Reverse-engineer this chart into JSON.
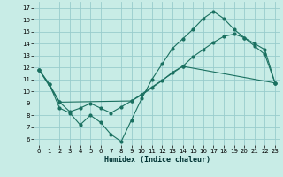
{
  "xlabel": "Humidex (Indice chaleur)",
  "bg_color": "#c8ece6",
  "grid_color": "#99cccc",
  "line_color": "#1a7060",
  "xlim": [
    -0.5,
    23.5
  ],
  "ylim": [
    5.5,
    17.5
  ],
  "xticks": [
    0,
    1,
    2,
    3,
    4,
    5,
    6,
    7,
    8,
    9,
    10,
    11,
    12,
    13,
    14,
    15,
    16,
    17,
    18,
    19,
    20,
    21,
    22,
    23
  ],
  "yticks": [
    6,
    7,
    8,
    9,
    10,
    11,
    12,
    13,
    14,
    15,
    16,
    17
  ],
  "line1_x": [
    0,
    1,
    2,
    3,
    4,
    5,
    6,
    7,
    8,
    9,
    10,
    11,
    12,
    13,
    14,
    15,
    16,
    17,
    18,
    19,
    20,
    21,
    22,
    23
  ],
  "line1_y": [
    11.8,
    10.6,
    8.6,
    8.2,
    7.2,
    8.0,
    7.4,
    6.4,
    5.8,
    7.6,
    9.4,
    11.0,
    12.3,
    13.6,
    14.4,
    15.2,
    16.1,
    16.7,
    16.1,
    15.2,
    14.5,
    13.8,
    13.1,
    10.7
  ],
  "line2_x": [
    0,
    1,
    2,
    3,
    4,
    5,
    6,
    7,
    8,
    9,
    10,
    11,
    12,
    13,
    14,
    15,
    16,
    17,
    18,
    19,
    20,
    21,
    22,
    23
  ],
  "line2_y": [
    11.8,
    10.6,
    9.1,
    8.3,
    8.6,
    9.0,
    8.6,
    8.2,
    8.7,
    9.2,
    9.7,
    10.3,
    10.9,
    11.6,
    12.1,
    12.9,
    13.5,
    14.1,
    14.6,
    14.8,
    14.5,
    14.0,
    13.5,
    10.7
  ],
  "line3_x": [
    0,
    2,
    9,
    14,
    23
  ],
  "line3_y": [
    11.8,
    9.1,
    9.2,
    12.1,
    10.7
  ]
}
